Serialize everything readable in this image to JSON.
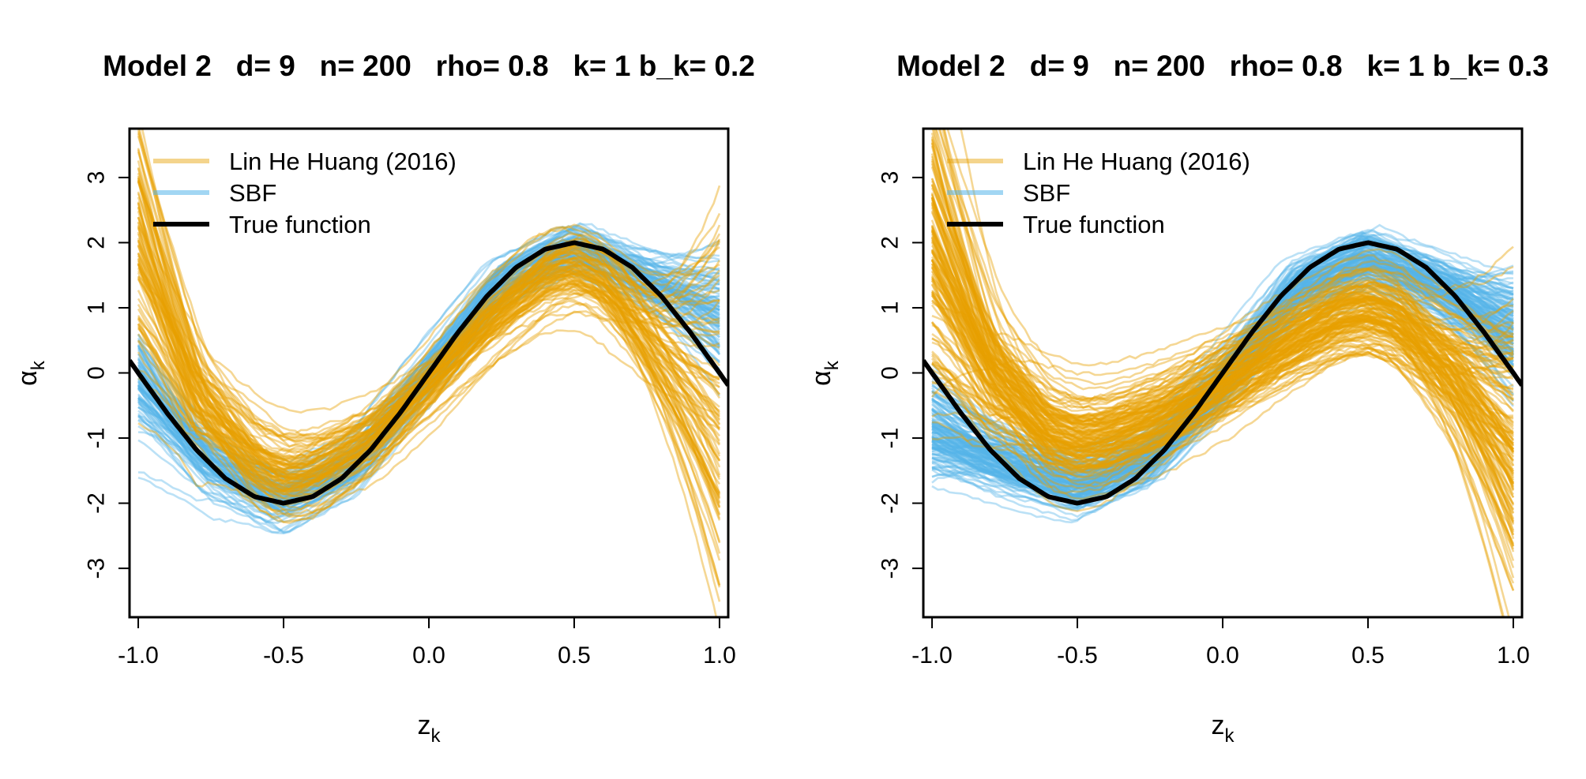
{
  "chart_data": [
    {
      "type": "line",
      "title": "Model 2   d= 9   n= 200   rho= 0.8   k= 1 b_k= 0.2",
      "xlabel": "z",
      "xlabel_sub": "k",
      "ylabel": "α",
      "ylabel_sub": "k",
      "xlim": [
        -1.03,
        1.03
      ],
      "ylim": [
        -3.75,
        3.75
      ],
      "xticks": [
        "-1.0",
        "-0.5",
        "0.0",
        "0.5",
        "1.0"
      ],
      "yticks": [
        "-3",
        "-2",
        "-1",
        "0",
        "1",
        "2",
        "3"
      ],
      "grid": false,
      "legend": "top-left",
      "series": [
        {
          "name": "Lin He Huang (2016)",
          "color": "#e69f00",
          "style": "many translucent replicate estimates",
          "mean_curve": {
            "x": [
              -1,
              -0.8,
              -0.6,
              -0.5,
              -0.4,
              -0.2,
              0,
              0.2,
              0.4,
              0.5,
              0.6,
              0.8,
              1
            ],
            "y": [
              2.2,
              -0.3,
              -1.35,
              -1.6,
              -1.55,
              -1.05,
              -0.2,
              0.75,
              1.5,
              1.65,
              1.45,
              0.4,
              -0.5
            ]
          }
        },
        {
          "name": "SBF",
          "color": "#56b4e9",
          "style": "many translucent replicate estimates",
          "mean_curve": {
            "x": [
              -1,
              -0.75,
              -0.5,
              -0.25,
              0,
              0.25,
              0.5,
              0.75,
              1
            ],
            "y": [
              -0.1,
              -1.4,
              -1.95,
              -1.4,
              0,
              1.4,
              1.95,
              1.45,
              0.9
            ]
          }
        },
        {
          "name": "True function",
          "color": "#000000",
          "style": "thick solid",
          "x": [
            -1.03,
            -1,
            -0.9,
            -0.8,
            -0.7,
            -0.6,
            -0.5,
            -0.4,
            -0.3,
            -0.2,
            -0.1,
            0,
            0.1,
            0.2,
            0.3,
            0.4,
            0.5,
            0.6,
            0.7,
            0.8,
            0.9,
            1,
            1.03
          ],
          "y": [
            0.19,
            0,
            -0.62,
            -1.18,
            -1.62,
            -1.9,
            -2,
            -1.9,
            -1.62,
            -1.18,
            -0.62,
            0,
            0.62,
            1.18,
            1.62,
            1.9,
            2,
            1.9,
            1.62,
            1.18,
            0.62,
            0,
            -0.19
          ]
        }
      ]
    },
    {
      "type": "line",
      "title": "Model 2   d= 9   n= 200   rho= 0.8   k= 1 b_k= 0.3",
      "xlabel": "z",
      "xlabel_sub": "k",
      "ylabel": "α",
      "ylabel_sub": "k",
      "xlim": [
        -1.03,
        1.03
      ],
      "ylim": [
        -3.75,
        3.75
      ],
      "xticks": [
        "-1.0",
        "-0.5",
        "0.0",
        "0.5",
        "1.0"
      ],
      "yticks": [
        "-3",
        "-2",
        "-1",
        "0",
        "1",
        "2",
        "3"
      ],
      "grid": false,
      "legend": "top-left",
      "series": [
        {
          "name": "Lin He Huang (2016)",
          "color": "#e69f00",
          "style": "many translucent replicate estimates",
          "mean_curve": {
            "x": [
              -1,
              -0.8,
              -0.6,
              -0.5,
              -0.4,
              -0.2,
              0,
              0.2,
              0.4,
              0.5,
              0.6,
              0.8,
              1
            ],
            "y": [
              2.0,
              0.1,
              -0.85,
              -1.0,
              -0.95,
              -0.6,
              -0.1,
              0.45,
              0.95,
              1.05,
              0.9,
              0.0,
              -1.2
            ]
          }
        },
        {
          "name": "SBF",
          "color": "#56b4e9",
          "style": "many translucent replicate estimates",
          "mean_curve": {
            "x": [
              -1,
              -0.75,
              -0.5,
              -0.25,
              0,
              0.25,
              0.5,
              0.75,
              1
            ],
            "y": [
              -0.9,
              -1.35,
              -1.7,
              -1.25,
              -0.1,
              1.3,
              1.8,
              1.35,
              0.7
            ]
          }
        },
        {
          "name": "True function",
          "color": "#000000",
          "style": "thick solid",
          "x": [
            -1.03,
            -1,
            -0.9,
            -0.8,
            -0.7,
            -0.6,
            -0.5,
            -0.4,
            -0.3,
            -0.2,
            -0.1,
            0,
            0.1,
            0.2,
            0.3,
            0.4,
            0.5,
            0.6,
            0.7,
            0.8,
            0.9,
            1,
            1.03
          ],
          "y": [
            0.19,
            0,
            -0.62,
            -1.18,
            -1.62,
            -1.9,
            -2,
            -1.9,
            -1.62,
            -1.18,
            -0.62,
            0,
            0.62,
            1.18,
            1.62,
            1.9,
            2,
            1.9,
            1.62,
            1.18,
            0.62,
            0,
            -0.19
          ]
        }
      ]
    }
  ]
}
